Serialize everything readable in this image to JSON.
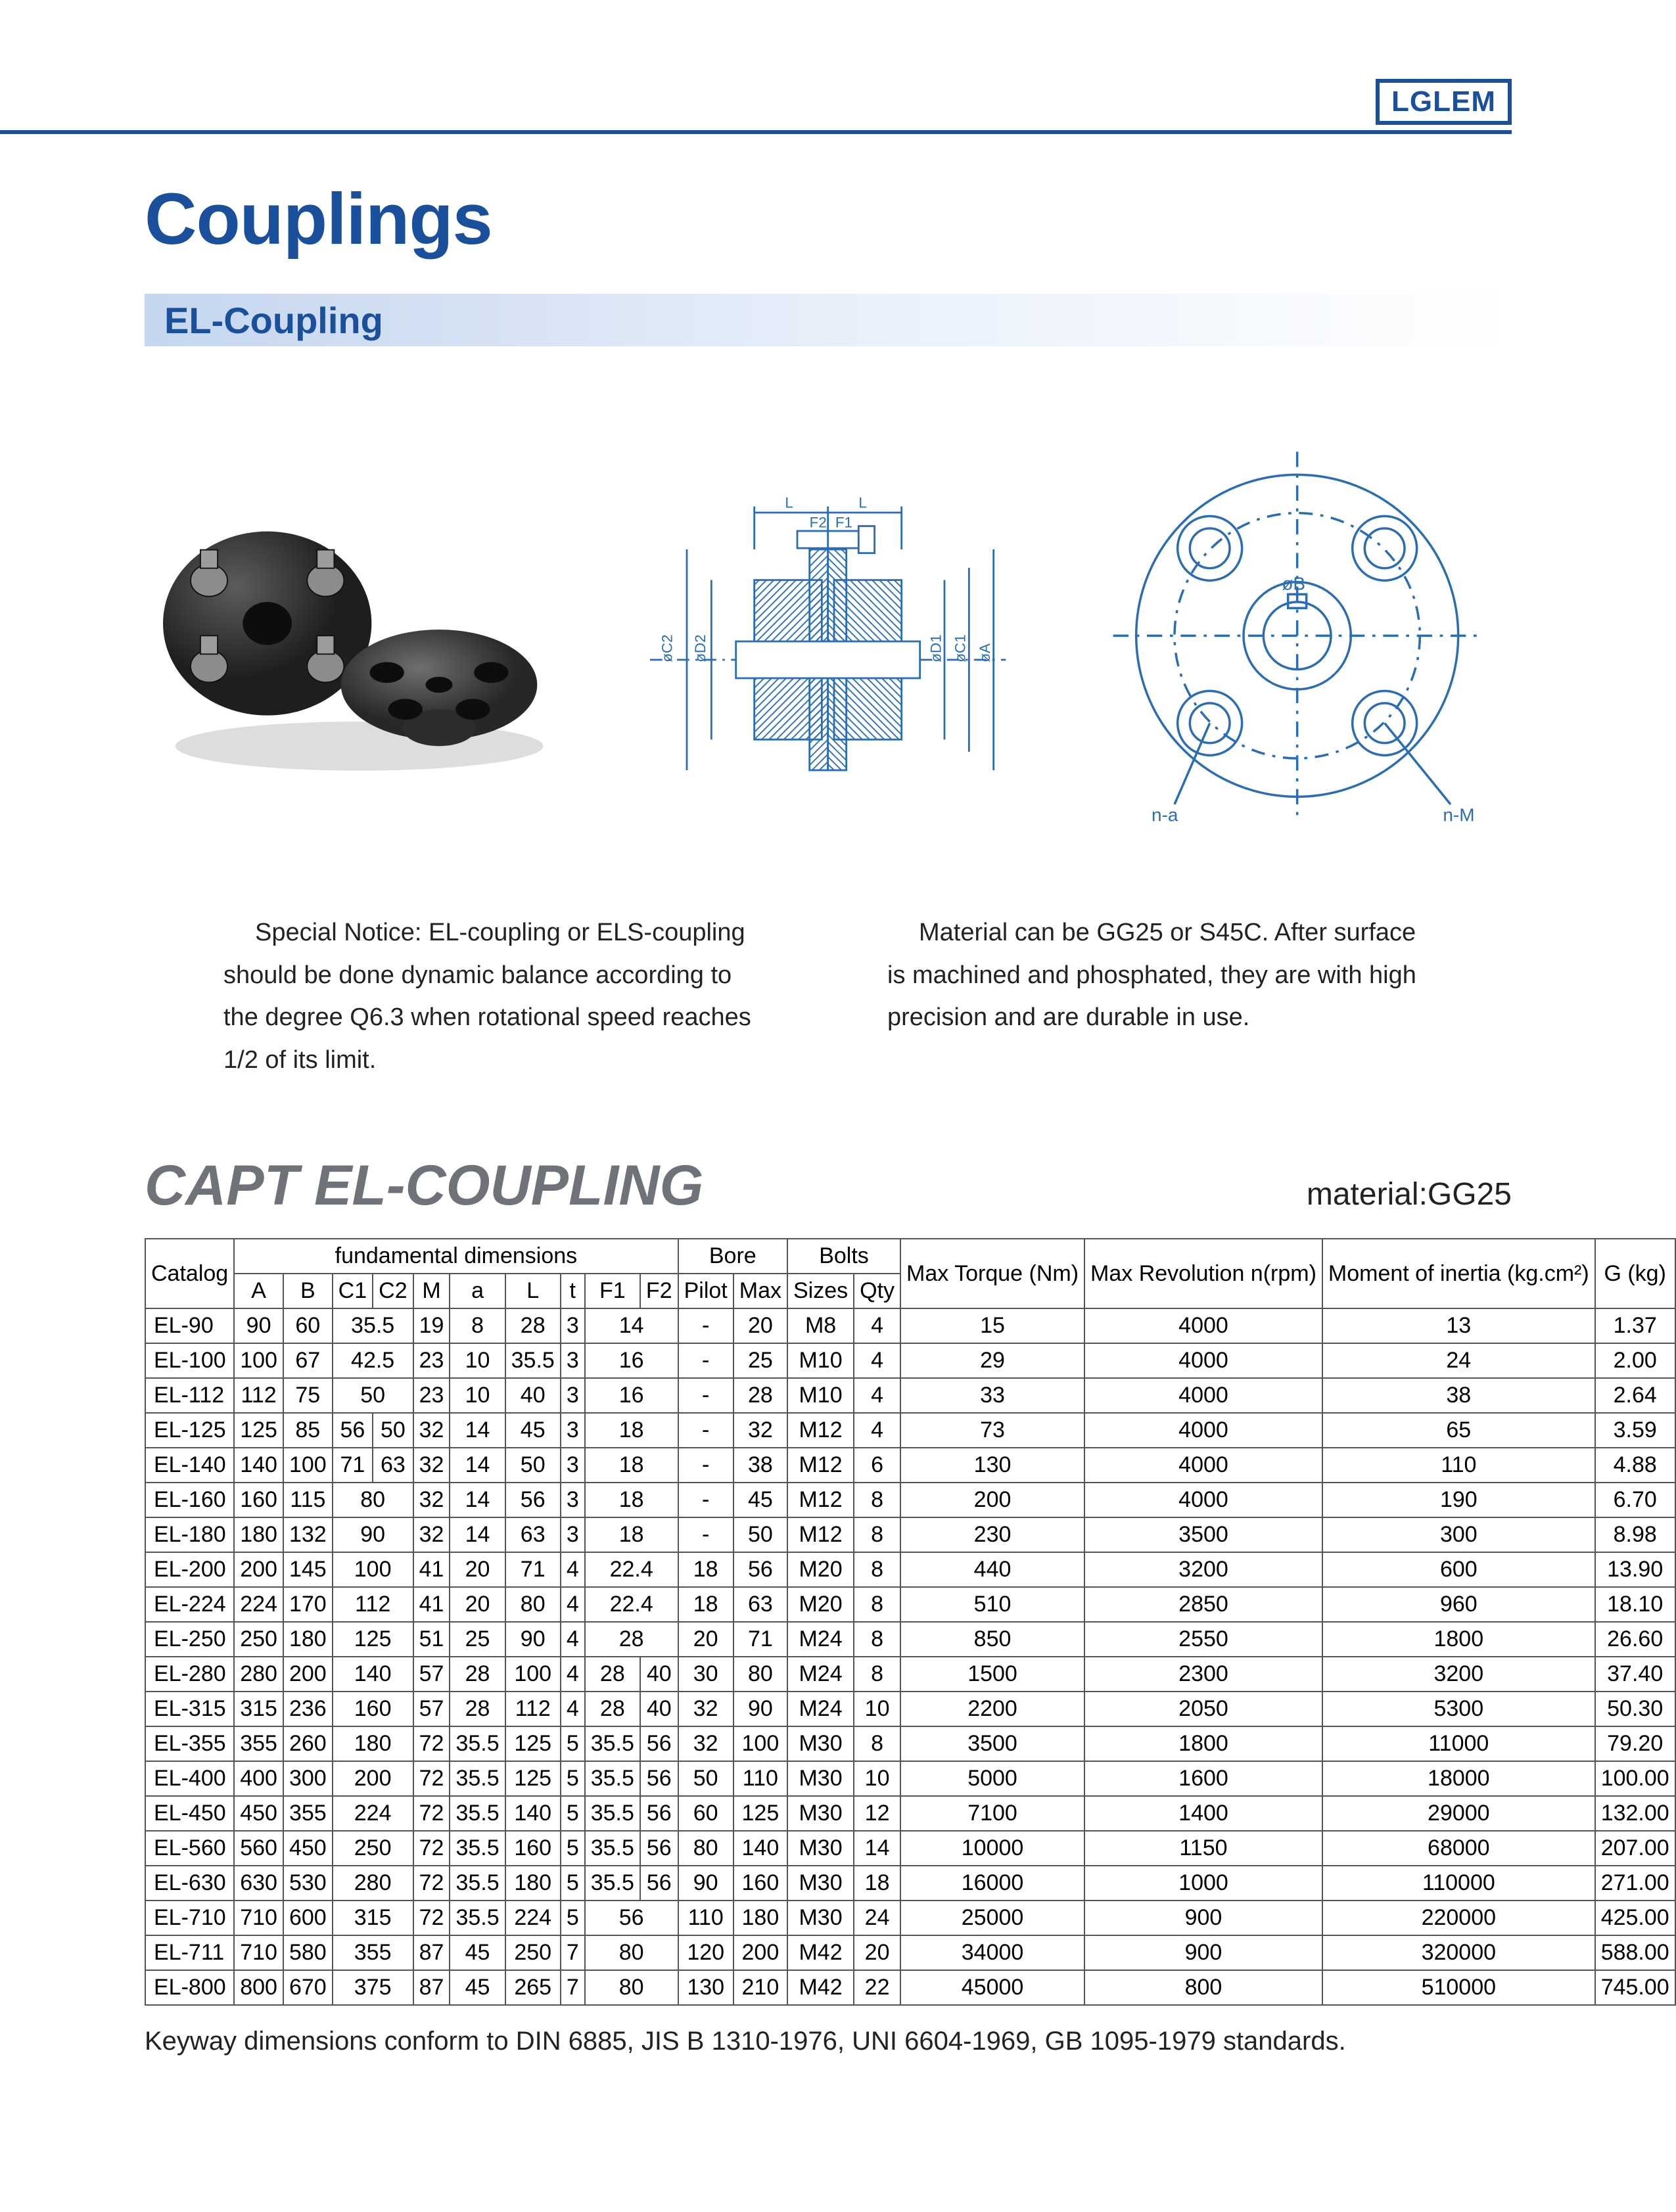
{
  "brand": "LGLEM",
  "title": "Couplings",
  "subtitle": "EL-Coupling",
  "diagram_labels": {
    "L": "L",
    "F1": "F1",
    "F2": "F2",
    "oC2": "øC2",
    "oD2": "øD2",
    "oD1": "øD1",
    "oC1": "øC1",
    "oA": "øA",
    "oB": "øB",
    "na": "n-a",
    "nM": "n-M"
  },
  "notes": {
    "left": "Special Notice: EL-coupling or ELS-coupling should be done dynamic balance according to the degree Q6.3 when rotational speed reaches 1/2 of its limit.",
    "right": "Material can be GG25 or S45C. After surface is machined and phosphated, they are with high precision and are durable in use."
  },
  "table_heading": "CAPT EL-COUPLING",
  "material": "material:GG25",
  "table": {
    "group_headers": {
      "catalog": "Catalog",
      "fundamental": "fundamental dimensions",
      "bore": "Bore",
      "bolts": "Bolts",
      "torque": "Max Torque (Nm)",
      "rev": "Max Revolution n(rpm)",
      "moi": "Moment of inertia (kg.cm²)",
      "g": "G (kg)"
    },
    "sub_headers": [
      "A",
      "B",
      "C1",
      "C2",
      "M",
      "a",
      "L",
      "t",
      "F1",
      "F2",
      "Pilot",
      "Max",
      "Sizes",
      "Qty"
    ],
    "rows": [
      [
        "EL-90",
        "90",
        "60",
        "35.5",
        "",
        "19",
        "8",
        "28",
        "3",
        "14",
        "",
        "-",
        "20",
        "M8",
        "4",
        "15",
        "4000",
        "13",
        "1.37"
      ],
      [
        "EL-100",
        "100",
        "67",
        "42.5",
        "",
        "23",
        "10",
        "35.5",
        "3",
        "16",
        "",
        "-",
        "25",
        "M10",
        "4",
        "29",
        "4000",
        "24",
        "2.00"
      ],
      [
        "EL-112",
        "112",
        "75",
        "50",
        "",
        "23",
        "10",
        "40",
        "3",
        "16",
        "",
        "-",
        "28",
        "M10",
        "4",
        "33",
        "4000",
        "38",
        "2.64"
      ],
      [
        "EL-125",
        "125",
        "85",
        "56",
        "50",
        "32",
        "14",
        "45",
        "3",
        "18",
        "",
        "-",
        "32",
        "M12",
        "4",
        "73",
        "4000",
        "65",
        "3.59"
      ],
      [
        "EL-140",
        "140",
        "100",
        "71",
        "63",
        "32",
        "14",
        "50",
        "3",
        "18",
        "",
        "-",
        "38",
        "M12",
        "6",
        "130",
        "4000",
        "110",
        "4.88"
      ],
      [
        "EL-160",
        "160",
        "115",
        "80",
        "",
        "32",
        "14",
        "56",
        "3",
        "18",
        "",
        "-",
        "45",
        "M12",
        "8",
        "200",
        "4000",
        "190",
        "6.70"
      ],
      [
        "EL-180",
        "180",
        "132",
        "90",
        "",
        "32",
        "14",
        "63",
        "3",
        "18",
        "",
        "-",
        "50",
        "M12",
        "8",
        "230",
        "3500",
        "300",
        "8.98"
      ],
      [
        "EL-200",
        "200",
        "145",
        "100",
        "",
        "41",
        "20",
        "71",
        "4",
        "22.4",
        "",
        "18",
        "56",
        "M20",
        "8",
        "440",
        "3200",
        "600",
        "13.90"
      ],
      [
        "EL-224",
        "224",
        "170",
        "112",
        "",
        "41",
        "20",
        "80",
        "4",
        "22.4",
        "",
        "18",
        "63",
        "M20",
        "8",
        "510",
        "2850",
        "960",
        "18.10"
      ],
      [
        "EL-250",
        "250",
        "180",
        "125",
        "",
        "51",
        "25",
        "90",
        "4",
        "28",
        "",
        "20",
        "71",
        "M24",
        "8",
        "850",
        "2550",
        "1800",
        "26.60"
      ],
      [
        "EL-280",
        "280",
        "200",
        "140",
        "",
        "57",
        "28",
        "100",
        "4",
        "28",
        "40",
        "30",
        "80",
        "M24",
        "8",
        "1500",
        "2300",
        "3200",
        "37.40"
      ],
      [
        "EL-315",
        "315",
        "236",
        "160",
        "",
        "57",
        "28",
        "112",
        "4",
        "28",
        "40",
        "32",
        "90",
        "M24",
        "10",
        "2200",
        "2050",
        "5300",
        "50.30"
      ],
      [
        "EL-355",
        "355",
        "260",
        "180",
        "",
        "72",
        "35.5",
        "125",
        "5",
        "35.5",
        "56",
        "32",
        "100",
        "M30",
        "8",
        "3500",
        "1800",
        "11000",
        "79.20"
      ],
      [
        "EL-400",
        "400",
        "300",
        "200",
        "",
        "72",
        "35.5",
        "125",
        "5",
        "35.5",
        "56",
        "50",
        "110",
        "M30",
        "10",
        "5000",
        "1600",
        "18000",
        "100.00"
      ],
      [
        "EL-450",
        "450",
        "355",
        "224",
        "",
        "72",
        "35.5",
        "140",
        "5",
        "35.5",
        "56",
        "60",
        "125",
        "M30",
        "12",
        "7100",
        "1400",
        "29000",
        "132.00"
      ],
      [
        "EL-560",
        "560",
        "450",
        "250",
        "",
        "72",
        "35.5",
        "160",
        "5",
        "35.5",
        "56",
        "80",
        "140",
        "M30",
        "14",
        "10000",
        "1150",
        "68000",
        "207.00"
      ],
      [
        "EL-630",
        "630",
        "530",
        "280",
        "",
        "72",
        "35.5",
        "180",
        "5",
        "35.5",
        "56",
        "90",
        "160",
        "M30",
        "18",
        "16000",
        "1000",
        "110000",
        "271.00"
      ],
      [
        "EL-710",
        "710",
        "600",
        "315",
        "",
        "72",
        "35.5",
        "224",
        "5",
        "56",
        "",
        "110",
        "180",
        "M30",
        "24",
        "25000",
        "900",
        "220000",
        "425.00"
      ],
      [
        "EL-711",
        "710",
        "580",
        "355",
        "",
        "87",
        "45",
        "250",
        "7",
        "80",
        "",
        "120",
        "200",
        "M42",
        "20",
        "34000",
        "900",
        "320000",
        "588.00"
      ],
      [
        "EL-800",
        "800",
        "670",
        "375",
        "",
        "87",
        "45",
        "265",
        "7",
        "80",
        "",
        "130",
        "210",
        "M42",
        "22",
        "45000",
        "800",
        "510000",
        "745.00"
      ]
    ]
  },
  "footnote": "Keyway dimensions conform to DIN 6885, JIS B 1310-1976, UNI 6604-1969, GB 1095-1979 standards.",
  "colors": {
    "brand": "#1a4f9c",
    "rule": "#1a4f9c",
    "subbar_from": "#c5d6ee",
    "grey_title": "#6f7379",
    "border": "#555555",
    "text": "#222222",
    "diagram_line": "#2a6db3",
    "hatch": "#2a6db3"
  }
}
